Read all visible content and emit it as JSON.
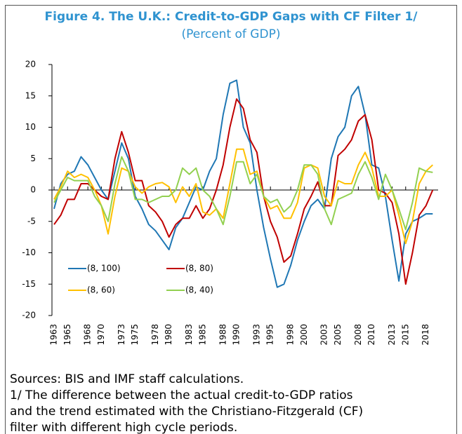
{
  "chart_data": {
    "type": "line",
    "title": "Figure 4. The U.K.: Credit-to-GDP Gaps with CF Filter 1/",
    "subtitle": "(Percent of GDP)",
    "notes": [
      "Sources: BIS and IMF staff calculations.",
      "1/ The difference between the actual credit-to-GDP ratios",
      "and the trend estimated with the Christiano-Fitzgerald (CF)",
      "filter with different high cycle periods."
    ],
    "x": [
      1963,
      1964,
      1965,
      1966,
      1967,
      1968,
      1969,
      1970,
      1971,
      1972,
      1973,
      1974,
      1975,
      1976,
      1977,
      1978,
      1979,
      1980,
      1981,
      1982,
      1983,
      1984,
      1985,
      1986,
      1987,
      1988,
      1989,
      1990,
      1991,
      1992,
      1993,
      1994,
      1995,
      1996,
      1997,
      1998,
      1999,
      2000,
      2001,
      2002,
      2003,
      2004,
      2005,
      2006,
      2007,
      2008,
      2009,
      2010,
      2011,
      2012,
      2013,
      2014,
      2015,
      2016,
      2017,
      2018,
      2019
    ],
    "series": [
      {
        "name": "(8, 100)",
        "color": "#1f77b4",
        "values": [
          -3,
          1,
          2.5,
          3,
          5.3,
          4,
          2,
          0,
          -1.5,
          3,
          7.5,
          5,
          -1,
          -3,
          -5.5,
          -6.5,
          -8,
          -9.5,
          -6,
          -4.5,
          -2,
          0.5,
          0,
          3,
          5,
          12,
          17,
          17.5,
          10,
          7.5,
          0,
          -6,
          -11,
          -15.5,
          -15,
          -12,
          -8,
          -5,
          -2.5,
          -1.5,
          -3,
          5,
          8.5,
          10,
          15,
          16.5,
          12,
          4,
          3.5,
          -1,
          -8,
          -14.5,
          -7,
          -5,
          -4.5,
          -3.8,
          -3.8
        ]
      },
      {
        "name": "(8, 80)",
        "color": "#c00000",
        "values": [
          -5.5,
          -4,
          -1.5,
          -1.5,
          1,
          1,
          0,
          -1,
          -1.5,
          5,
          9.3,
          6,
          1.5,
          1.5,
          -2.5,
          -3.5,
          -5,
          -7.5,
          -5.5,
          -4.5,
          -4.5,
          -2.5,
          -4.5,
          -3,
          0,
          4,
          10,
          14.5,
          13,
          8,
          6,
          -1,
          -5,
          -7.5,
          -11.5,
          -10.5,
          -7,
          -3,
          -1,
          1.3,
          -2.5,
          -2.5,
          5.5,
          6.5,
          8,
          11,
          12,
          8,
          0,
          -0.5,
          -2,
          -7,
          -15,
          -10,
          -4,
          -2.5,
          0
        ]
      },
      {
        "name": "(8, 60)",
        "color": "#ffc000",
        "values": [
          -1.5,
          0.5,
          3,
          2,
          2.5,
          2,
          0,
          -2.5,
          -7,
          -1,
          3.5,
          3,
          0.5,
          -0.5,
          0.5,
          1,
          1.2,
          0.5,
          -2,
          0.5,
          -1,
          1,
          -3.5,
          -4,
          -3,
          -4.5,
          1,
          6.5,
          6.5,
          2.5,
          3,
          -1,
          -3,
          -2.5,
          -4.5,
          -4.5,
          -2,
          3.5,
          4,
          3.5,
          -1,
          -2.5,
          1.5,
          1,
          1,
          4,
          6,
          3.5,
          -1,
          -1,
          0,
          -4,
          -8.5,
          -5,
          1,
          3,
          4
        ]
      },
      {
        "name": "(8, 40)",
        "color": "#92d050",
        "values": [
          -2,
          0,
          2,
          1.5,
          1.5,
          1.5,
          -1,
          -2.5,
          -5,
          1,
          5.3,
          3,
          -1.5,
          -1.5,
          -2,
          -1.5,
          -1,
          -1,
          0,
          3.5,
          2.5,
          3.5,
          0,
          -1,
          -3,
          -5.5,
          -1,
          4.5,
          4.5,
          1,
          2.5,
          -1,
          -2,
          -1.5,
          -3.5,
          -2.5,
          0,
          4,
          4,
          2.5,
          -3,
          -5.5,
          -1.5,
          -1,
          -0.5,
          2.5,
          4.5,
          2,
          -1.5,
          2.5,
          0,
          -3,
          -6.3,
          -2,
          3.5,
          3,
          2.8
        ]
      }
    ],
    "xlim": [
      1963,
      2019.8
    ],
    "xticks": [
      1963,
      1965,
      1968,
      1970,
      1973,
      1975,
      1978,
      1980,
      1983,
      1985,
      1988,
      1990,
      1993,
      1995,
      1998,
      2000,
      2003,
      2005,
      2008,
      2010,
      2013,
      2015,
      2018
    ],
    "ylim": [
      -20,
      20
    ],
    "yticks": [
      -20,
      -15,
      -10,
      -5,
      0,
      5,
      10,
      15,
      20
    ],
    "grid": false
  }
}
